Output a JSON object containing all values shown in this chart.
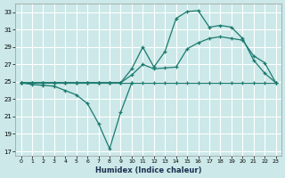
{
  "xlabel": "Humidex (Indice chaleur)",
  "bg_color": "#cce8e8",
  "grid_color": "#ffffff",
  "line_color": "#1a7a6e",
  "xlim": [
    -0.5,
    23.5
  ],
  "ylim": [
    16.5,
    34
  ],
  "xticks": [
    0,
    1,
    2,
    3,
    4,
    5,
    6,
    7,
    8,
    9,
    10,
    11,
    12,
    13,
    14,
    15,
    16,
    17,
    18,
    19,
    20,
    21,
    22,
    23
  ],
  "yticks": [
    17,
    19,
    21,
    23,
    25,
    27,
    29,
    31,
    33
  ],
  "line1_x": [
    0,
    1,
    2,
    3,
    4,
    5,
    6,
    7,
    8,
    9,
    10,
    11,
    12,
    13,
    14,
    15,
    16,
    17,
    18,
    19,
    20,
    21,
    22,
    23
  ],
  "line1_y": [
    24.9,
    24.9,
    24.9,
    24.9,
    24.9,
    24.9,
    24.9,
    24.9,
    24.9,
    24.9,
    24.9,
    24.9,
    24.9,
    24.9,
    24.9,
    24.9,
    24.9,
    24.9,
    24.9,
    24.9,
    24.9,
    24.9,
    24.9,
    24.9
  ],
  "line2_x": [
    0,
    1,
    2,
    3,
    4,
    5,
    6,
    7,
    8,
    9,
    10,
    11,
    12,
    13,
    14,
    15,
    16,
    17,
    18,
    19,
    20,
    21,
    22,
    23
  ],
  "line2_y": [
    24.9,
    24.9,
    24.9,
    24.9,
    24.9,
    24.9,
    24.9,
    24.9,
    24.9,
    24.9,
    25.8,
    27.0,
    26.5,
    26.6,
    26.7,
    28.8,
    29.5,
    30.0,
    30.2,
    30.0,
    29.8,
    28.0,
    27.2,
    24.9
  ],
  "line3_x": [
    0,
    1,
    2,
    3,
    4,
    5,
    6,
    7,
    8,
    9,
    10,
    11,
    12,
    13,
    14,
    15,
    16,
    17,
    18,
    19,
    20,
    21,
    22,
    23
  ],
  "line3_y": [
    24.9,
    24.9,
    24.9,
    24.9,
    24.9,
    24.9,
    24.9,
    24.9,
    24.9,
    24.9,
    26.5,
    29.0,
    26.7,
    28.5,
    32.3,
    33.1,
    33.2,
    31.3,
    31.5,
    31.3,
    30.0,
    27.5,
    26.0,
    24.9
  ],
  "line4_x": [
    0,
    1,
    2,
    3,
    4,
    5,
    6,
    7,
    8,
    9,
    10
  ],
  "line4_y": [
    24.9,
    24.7,
    24.6,
    24.5,
    24.0,
    23.5,
    22.5,
    20.2,
    17.3,
    21.5,
    24.9
  ]
}
